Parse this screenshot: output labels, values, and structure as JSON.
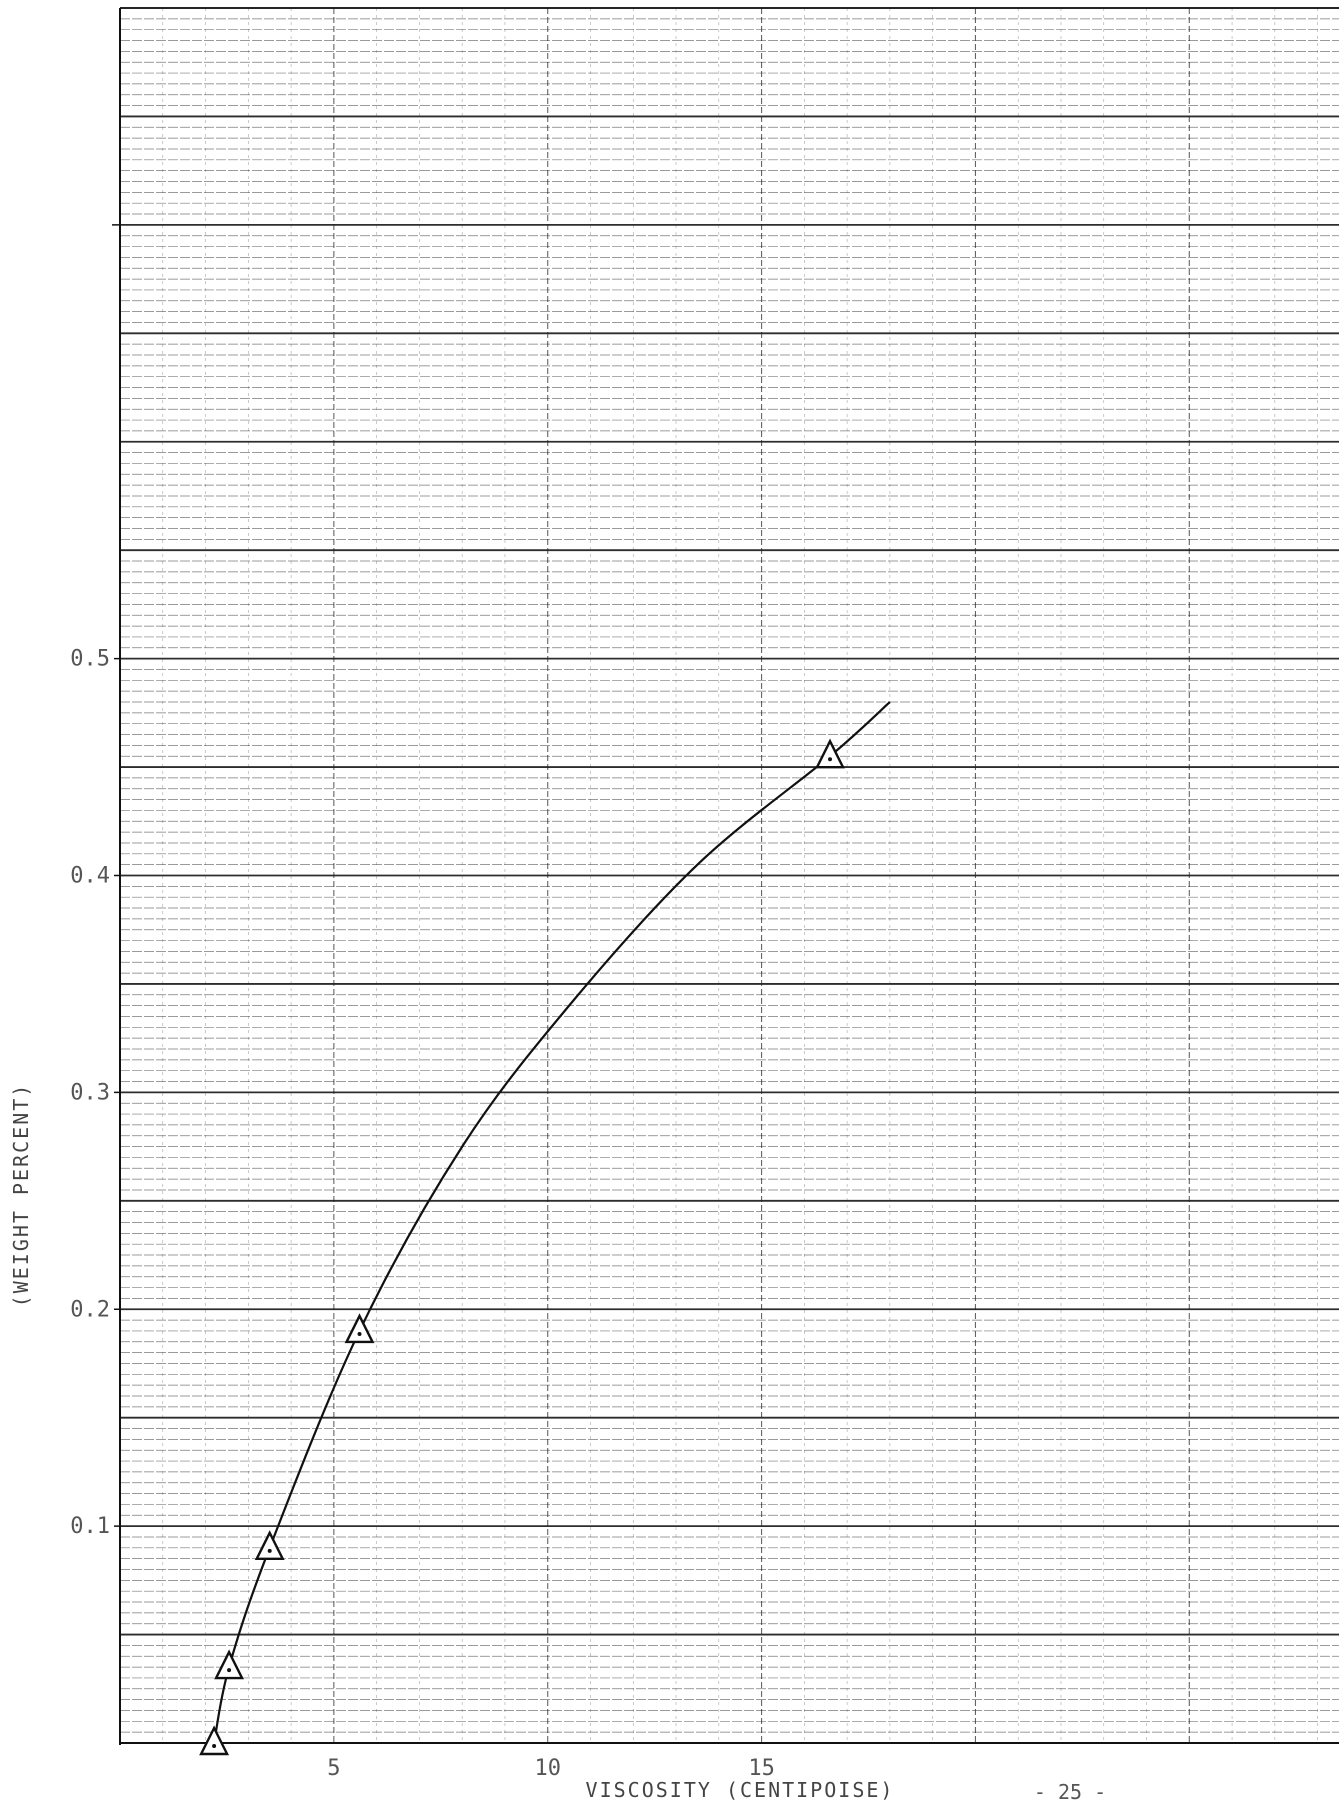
{
  "chart_data": {
    "type": "line",
    "title": "",
    "xlabel": "VISCOSITY (CENTIPOISE)",
    "ylabel": "(WEIGHT PERCENT)",
    "x_ticks": [
      5,
      10,
      15
    ],
    "y_ticks": [
      0.1,
      0.2,
      0.3,
      0.4,
      0.5
    ],
    "xlim": [
      0,
      28.5
    ],
    "ylim": [
      0,
      0.8
    ],
    "grid": true,
    "series": [
      {
        "marker": "triangle",
        "points": [
          {
            "x": 2.2,
            "y": 0.0
          },
          {
            "x": 2.55,
            "y": 0.035
          },
          {
            "x": 3.5,
            "y": 0.09
          },
          {
            "x": 5.6,
            "y": 0.19
          },
          {
            "x": 16.6,
            "y": 0.455
          }
        ],
        "curve": [
          {
            "x": 2.2,
            "y": 0.0
          },
          {
            "x": 2.55,
            "y": 0.035
          },
          {
            "x": 3.5,
            "y": 0.09
          },
          {
            "x": 5.6,
            "y": 0.19
          },
          {
            "x": 8.0,
            "y": 0.275
          },
          {
            "x": 10.5,
            "y": 0.34
          },
          {
            "x": 13.5,
            "y": 0.405
          },
          {
            "x": 16.6,
            "y": 0.455
          },
          {
            "x": 18.0,
            "y": 0.48
          }
        ]
      }
    ],
    "colors": {
      "line": "#111111",
      "grid": "#222222",
      "text": "#555555"
    }
  },
  "page_number": "- 25 -"
}
